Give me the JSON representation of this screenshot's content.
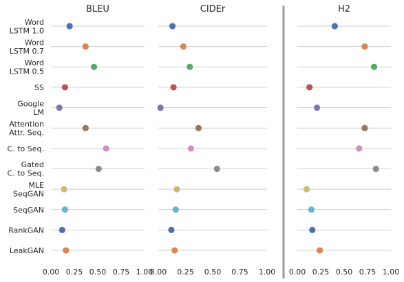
{
  "chart_data": {
    "type": "scatter",
    "categories": [
      [
        "Word",
        "LSTM 1.0"
      ],
      [
        "Word",
        "LSTM 0.7"
      ],
      [
        "Word",
        "LSTM 0.5"
      ],
      [
        "SS"
      ],
      [
        "Google",
        "LM"
      ],
      [
        "Attention",
        "Attr. Seq."
      ],
      [
        "C. to Seq."
      ],
      [
        "Gated",
        "C. to Seq."
      ],
      [
        "MLE",
        "SeqGAN"
      ],
      [
        "SeqGAN"
      ],
      [
        "RankGAN"
      ],
      [
        "LeakGAN"
      ]
    ],
    "point_colors": [
      "#4c72b0",
      "#dd8452",
      "#55a868",
      "#c44e52",
      "#8172b3",
      "#937860",
      "#da8bc3",
      "#8c8c8c",
      "#ccb974",
      "#64b5cd",
      "#4c72b0",
      "#dd8452"
    ],
    "grid": true,
    "xlim": [
      0.0,
      1.0
    ],
    "xticks": [
      "0.00",
      "0.25",
      "0.50",
      "0.75",
      "1.00"
    ],
    "xtick_values": [
      0.0,
      0.25,
      0.5,
      0.75,
      1.0
    ],
    "panels": [
      {
        "title": "BLEU",
        "values": [
          0.2,
          0.37,
          0.46,
          0.15,
          0.09,
          0.37,
          0.59,
          0.51,
          0.14,
          0.15,
          0.12,
          0.16
        ]
      },
      {
        "title": "CIDEr",
        "values": [
          0.13,
          0.23,
          0.29,
          0.14,
          0.02,
          0.37,
          0.3,
          0.54,
          0.17,
          0.16,
          0.12,
          0.15
        ]
      },
      {
        "title": "H2",
        "values": [
          0.4,
          0.72,
          0.82,
          0.13,
          0.21,
          0.72,
          0.66,
          0.84,
          0.1,
          0.15,
          0.16,
          0.24
        ]
      }
    ]
  }
}
